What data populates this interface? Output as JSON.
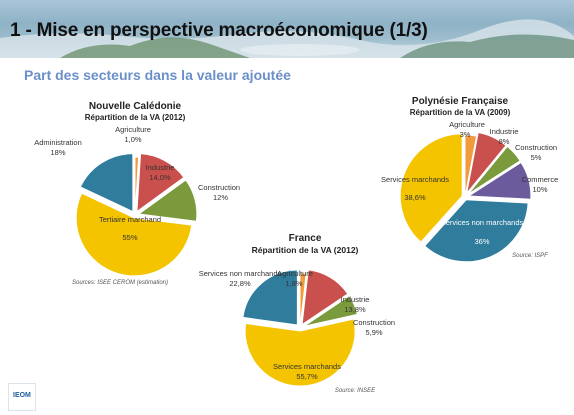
{
  "header": {
    "title": "1 - Mise en perspective macroéconomique (1/3)",
    "subtitle": "Part des secteurs dans la valeur ajoutée"
  },
  "logo": {
    "text": "IEOM",
    "icon": "ieom-logo-icon"
  },
  "chart_data": [
    {
      "type": "pie",
      "title": "Nouvelle Calédonie",
      "subtitle": "Répartition de la VA (2012)",
      "source": "Sources: ISEE CEROM (estimation)",
      "slices": [
        {
          "label": "Agriculture",
          "value": 1.0,
          "value_label": "1,0%",
          "color": "#f39a3c"
        },
        {
          "label": "Industrie",
          "value": 14.0,
          "value_label": "14,0%",
          "color": "#c9504c"
        },
        {
          "label": "Construction",
          "value": 12,
          "value_label": "12%",
          "color": "#7a9a3c"
        },
        {
          "label": "Tertiaire marchand",
          "value": 55,
          "value_label": "55%",
          "color": "#f5c400"
        },
        {
          "label": "Administration",
          "value": 18,
          "value_label": "18%",
          "color": "#2f7c9c"
        }
      ]
    },
    {
      "type": "pie",
      "title": "Polynésie Française",
      "subtitle": "Répartition de la VA (2009)",
      "source": "Source: ISPF",
      "slices": [
        {
          "label": "Agriculture",
          "value": 3,
          "value_label": "3%",
          "color": "#f39a3c"
        },
        {
          "label": "Industrie",
          "value": 8,
          "value_label": "8%",
          "color": "#c9504c"
        },
        {
          "label": "Construction",
          "value": 5,
          "value_label": "5%",
          "color": "#7a9a3c"
        },
        {
          "label": "Commerce",
          "value": 10,
          "value_label": "10%",
          "color": "#6b5a9c"
        },
        {
          "label": "Services non marchands",
          "value": 36,
          "value_label": "36%",
          "color": "#2f7c9c"
        },
        {
          "label": "Services marchands",
          "value": 38.6,
          "value_label": "38,6%",
          "color": "#f5c400"
        }
      ]
    },
    {
      "type": "pie",
      "title": "France",
      "subtitle": "Répartition de la VA (2012)",
      "source": "Source: INSEE",
      "slices": [
        {
          "label": "Agriculture",
          "value": 1.8,
          "value_label": "1,8%",
          "color": "#f39a3c"
        },
        {
          "label": "Industrie",
          "value": 13.8,
          "value_label": "13,8%",
          "color": "#c9504c"
        },
        {
          "label": "Construction",
          "value": 5.9,
          "value_label": "5,9%",
          "color": "#7a9a3c"
        },
        {
          "label": "Services marchands",
          "value": 55.7,
          "value_label": "55,7%",
          "color": "#f5c400"
        },
        {
          "label": "Services non marchands",
          "value": 22.8,
          "value_label": "22,8%",
          "color": "#2f7c9c"
        }
      ]
    }
  ]
}
